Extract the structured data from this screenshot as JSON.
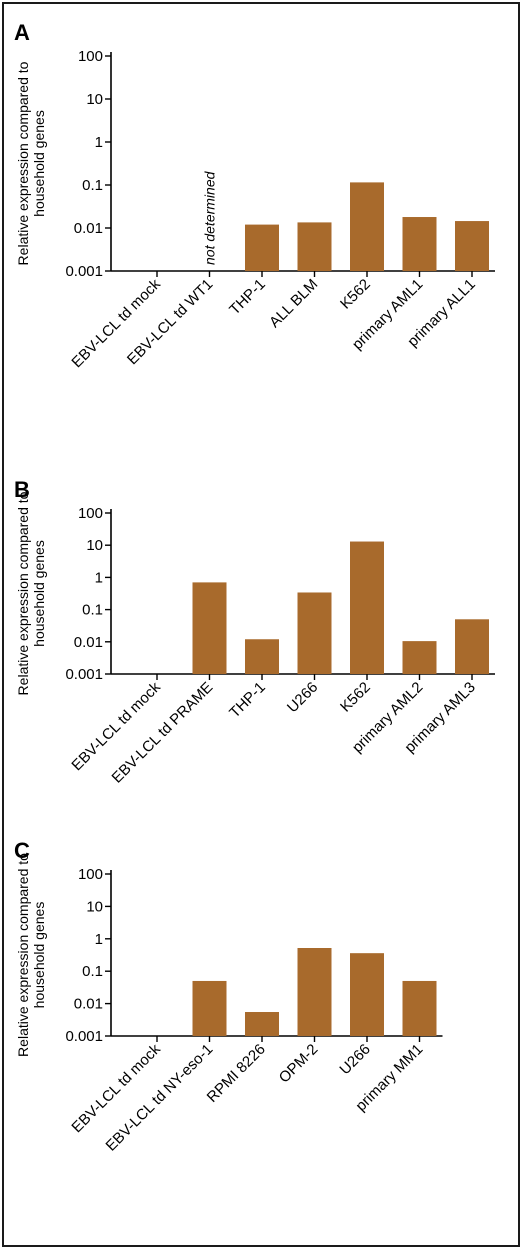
{
  "colors": {
    "bar": "#a86a2c",
    "axis": "#000000",
    "border": "#1a1a1a"
  },
  "chart_data": [
    {
      "panel": "A",
      "type": "bar",
      "yscale": "log",
      "ylim": [
        0.001,
        100
      ],
      "yticks": [
        "0.001",
        "0.01",
        "0.1",
        "1",
        "10",
        "100"
      ],
      "ylabel": [
        "Relative expression compared to",
        "household genes"
      ],
      "categories": [
        "EBV-LCL td mock",
        "EBV-LCL td WT1",
        "THP-1",
        "ALL BLM",
        "K562",
        "primary AML1",
        "primary ALL1"
      ],
      "values": [
        null,
        null,
        0.012,
        0.0135,
        0.115,
        0.018,
        0.0145
      ],
      "annotations": [
        {
          "category": "EBV-LCL td WT1",
          "text": "not determined"
        }
      ]
    },
    {
      "panel": "B",
      "type": "bar",
      "yscale": "log",
      "ylim": [
        0.001,
        100
      ],
      "yticks": [
        "0.001",
        "0.01",
        "0.1",
        "1",
        "10",
        "100"
      ],
      "ylabel": [
        "Relative expression compared to",
        "household genes"
      ],
      "categories": [
        "EBV-LCL td mock",
        "EBV-LCL td PRAME",
        "THP-1",
        "U266",
        "K562",
        "primary AML2",
        "primary AML3"
      ],
      "values": [
        null,
        0.7,
        0.012,
        0.34,
        13.0,
        0.0105,
        0.05
      ],
      "annotations": []
    },
    {
      "panel": "C",
      "type": "bar",
      "yscale": "log",
      "ylim": [
        0.001,
        100
      ],
      "yticks": [
        "0.001",
        "0.01",
        "0.1",
        "1",
        "10",
        "100"
      ],
      "ylabel": [
        "Relative expression compared to",
        "household genes"
      ],
      "categories": [
        "EBV-LCL td mock",
        "EBV-LCL td NY-eso-1",
        "RPMI 8226",
        "OPM-2",
        "U266",
        "primary MM1"
      ],
      "values": [
        null,
        0.05,
        0.0055,
        0.52,
        0.36,
        0.05
      ],
      "annotations": []
    }
  ]
}
